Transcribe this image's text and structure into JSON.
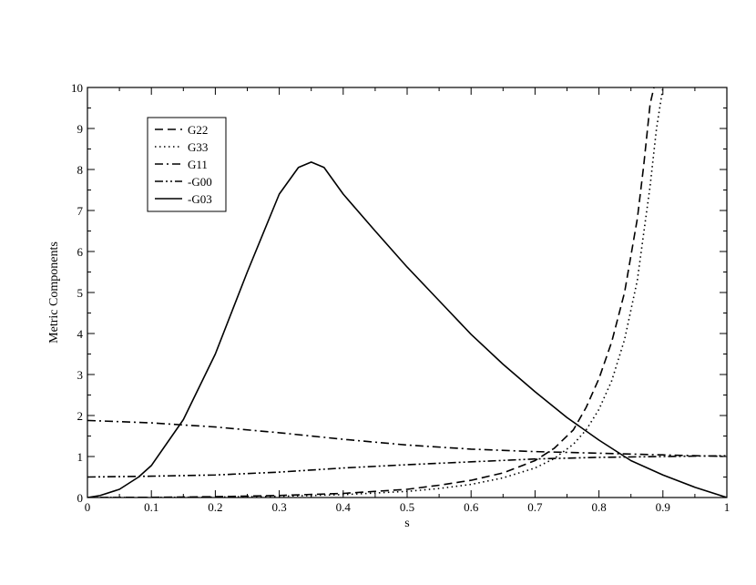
{
  "chart_data": {
    "type": "line",
    "title": "",
    "xlabel": "s",
    "ylabel": "Metric Components",
    "xlim": [
      0,
      1
    ],
    "ylim": [
      0,
      10
    ],
    "xticks": [
      0,
      0.1,
      0.2,
      0.3,
      0.4,
      0.5,
      0.6,
      0.7,
      0.8,
      0.9,
      1
    ],
    "xtick_labels": [
      "0",
      "0.1",
      "0.2",
      "0.3",
      "0.4",
      "0.5",
      "0.6",
      "0.7",
      "0.8",
      "0.9",
      "1"
    ],
    "yticks": [
      0,
      1,
      2,
      3,
      4,
      5,
      6,
      7,
      8,
      9,
      10
    ],
    "ytick_labels": [
      "0",
      "1",
      "2",
      "3",
      "4",
      "5",
      "6",
      "7",
      "8",
      "9",
      "10"
    ],
    "grid": false,
    "legend_position": "top-left",
    "series": [
      {
        "name": "G22",
        "dash": "dashed",
        "x": [
          0,
          0.1,
          0.2,
          0.3,
          0.4,
          0.5,
          0.55,
          0.6,
          0.65,
          0.7,
          0.73,
          0.76,
          0.78,
          0.8,
          0.82,
          0.84,
          0.86,
          0.87,
          0.88,
          0.886
        ],
        "y": [
          0,
          0.005,
          0.02,
          0.05,
          0.1,
          0.2,
          0.3,
          0.42,
          0.6,
          0.9,
          1.2,
          1.65,
          2.2,
          2.9,
          3.8,
          5.0,
          6.8,
          8.1,
          9.6,
          10
        ]
      },
      {
        "name": "G33",
        "dash": "dotted",
        "x": [
          0,
          0.1,
          0.2,
          0.3,
          0.4,
          0.5,
          0.55,
          0.6,
          0.65,
          0.7,
          0.73,
          0.76,
          0.78,
          0.8,
          0.82,
          0.84,
          0.86,
          0.88,
          0.89,
          0.9
        ],
        "y": [
          0,
          0.003,
          0.01,
          0.03,
          0.07,
          0.15,
          0.22,
          0.32,
          0.48,
          0.72,
          0.95,
          1.3,
          1.65,
          2.15,
          2.85,
          3.85,
          5.3,
          7.6,
          9.0,
          10
        ]
      },
      {
        "name": "G11",
        "dash": "dashdot",
        "x": [
          0,
          0.1,
          0.2,
          0.3,
          0.35,
          0.4,
          0.5,
          0.6,
          0.7,
          0.8,
          0.9,
          1
        ],
        "y": [
          1.88,
          1.82,
          1.72,
          1.58,
          1.5,
          1.42,
          1.28,
          1.18,
          1.12,
          1.08,
          1.04,
          1.0
        ]
      },
      {
        "name": "-G00",
        "dash": "dashdotdot",
        "x": [
          0,
          0.1,
          0.2,
          0.3,
          0.4,
          0.5,
          0.6,
          0.7,
          0.8,
          0.9,
          1
        ],
        "y": [
          0.5,
          0.52,
          0.55,
          0.62,
          0.72,
          0.8,
          0.87,
          0.94,
          0.98,
          1.0,
          1.02
        ]
      },
      {
        "name": "-G03",
        "dash": "solid",
        "x": [
          0,
          0.02,
          0.05,
          0.08,
          0.1,
          0.15,
          0.2,
          0.25,
          0.3,
          0.33,
          0.35,
          0.37,
          0.4,
          0.45,
          0.5,
          0.55,
          0.6,
          0.65,
          0.7,
          0.75,
          0.8,
          0.85,
          0.9,
          0.95,
          1.0
        ],
        "y": [
          0,
          0.05,
          0.2,
          0.5,
          0.78,
          1.9,
          3.5,
          5.5,
          7.4,
          8.05,
          8.18,
          8.05,
          7.4,
          6.5,
          5.62,
          4.8,
          3.98,
          3.25,
          2.58,
          1.95,
          1.4,
          0.9,
          0.55,
          0.25,
          0
        ]
      }
    ]
  }
}
